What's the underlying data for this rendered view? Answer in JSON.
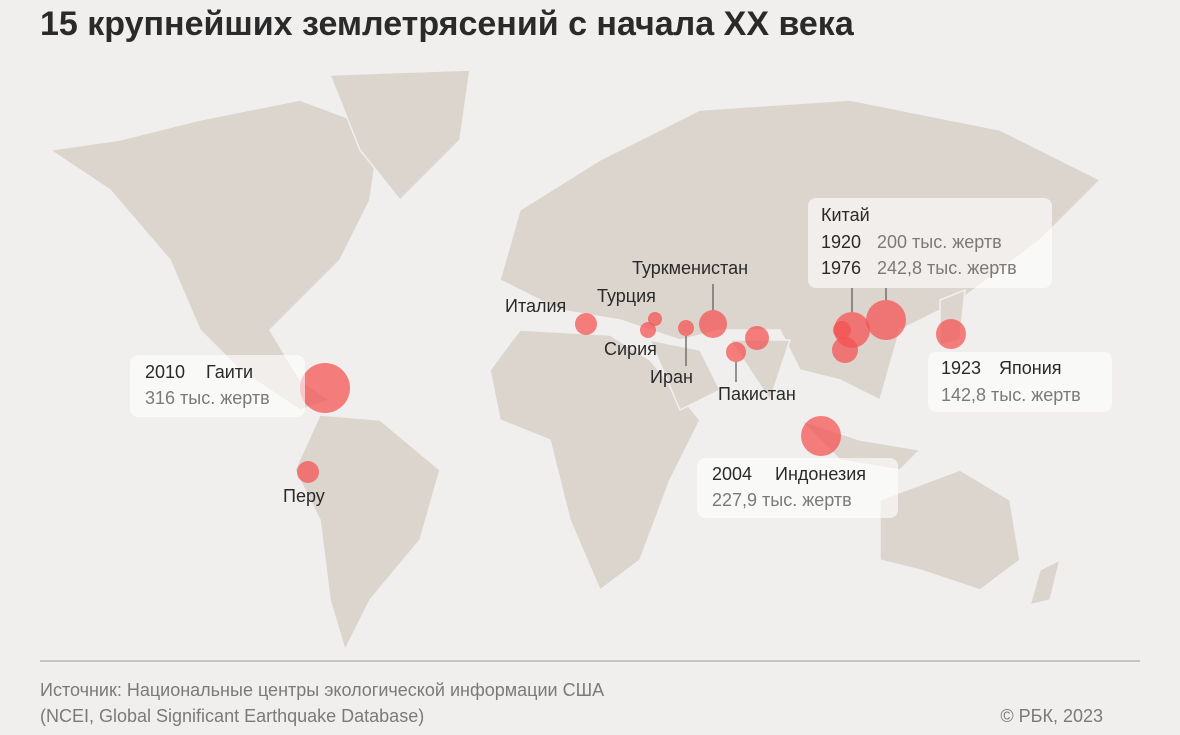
{
  "header": {
    "title": "15 крупнейших землетрясений с начала XX века"
  },
  "callouts": {
    "haiti": {
      "year": "2010",
      "place": "Гаити",
      "deaths": "316 тыс. жертв"
    },
    "china": {
      "place": "Китай",
      "rows": [
        {
          "year": "1920",
          "deaths": "200 тыс. жертв"
        },
        {
          "year": "1976",
          "deaths": "242,8 тыс. жертв"
        }
      ]
    },
    "japan": {
      "year": "1923",
      "place": "Япония",
      "deaths": "142,8 тыс. жертв"
    },
    "indonesia": {
      "year": "2004",
      "place": "Индонезия",
      "deaths": "227,9 тыс. жертв"
    }
  },
  "labels": {
    "italy": "Италия",
    "turkey": "Турция",
    "turkmenistan": "Туркменистан",
    "syria": "Сирия",
    "iran": "Иран",
    "pakistan": "Пакистан",
    "peru": "Перу"
  },
  "footer": {
    "source": [
      "Источник: Национальные центры экологической информации США",
      "(NCEI, Global Significant Earthquake Database)"
    ],
    "copyright": "© РБК, 2023"
  }
}
